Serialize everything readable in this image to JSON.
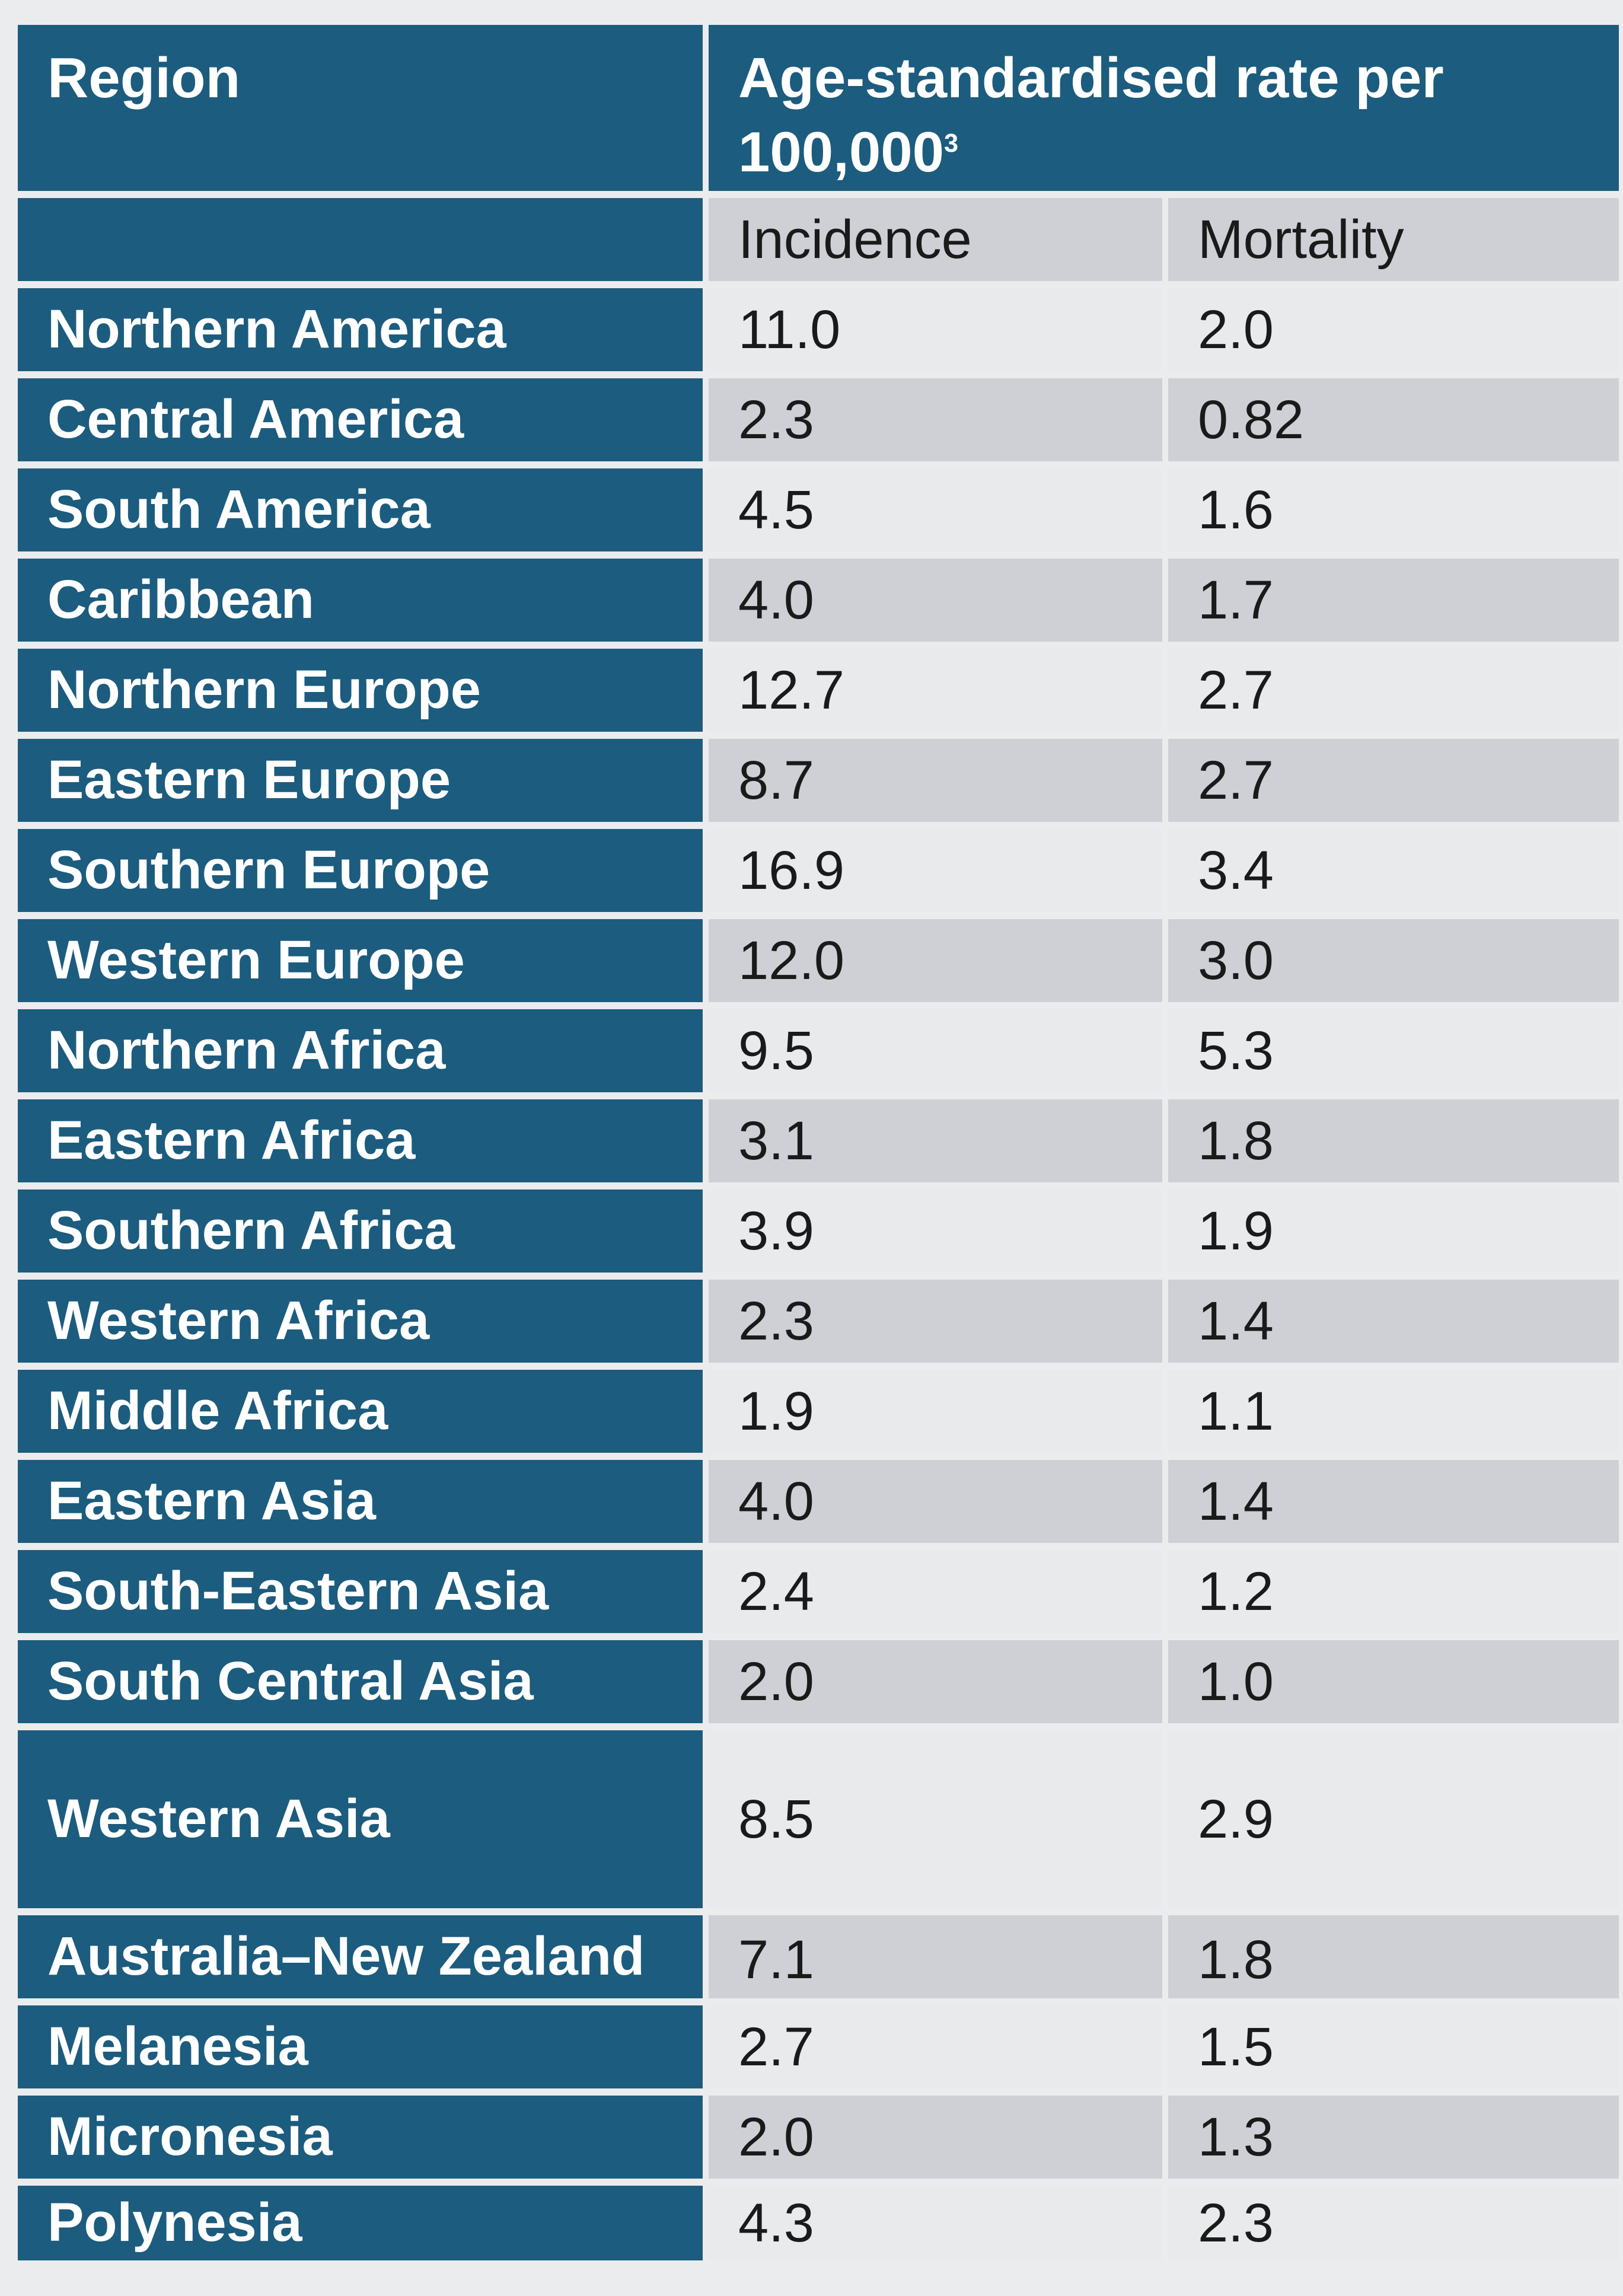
{
  "header": {
    "region": "Region",
    "rate": "Age-standardised rate per 100,000",
    "rate_footnote": "3"
  },
  "subheader": {
    "incidence": "Incidence",
    "mortality": "Mortality"
  },
  "rows": [
    {
      "region": "Northern America",
      "incidence": "11.0",
      "mortality": "2.0"
    },
    {
      "region": "Central America",
      "incidence": "2.3",
      "mortality": "0.82"
    },
    {
      "region": "South America",
      "incidence": "4.5",
      "mortality": "1.6"
    },
    {
      "region": "Caribbean",
      "incidence": "4.0",
      "mortality": "1.7"
    },
    {
      "region": "Northern Europe",
      "incidence": "12.7",
      "mortality": "2.7"
    },
    {
      "region": "Eastern Europe",
      "incidence": "8.7",
      "mortality": "2.7"
    },
    {
      "region": "Southern Europe",
      "incidence": "16.9",
      "mortality": "3.4"
    },
    {
      "region": "Western Europe",
      "incidence": "12.0",
      "mortality": "3.0"
    },
    {
      "region": "Northern Africa",
      "incidence": "9.5",
      "mortality": "5.3"
    },
    {
      "region": "Eastern Africa",
      "incidence": "3.1",
      "mortality": "1.8"
    },
    {
      "region": "Southern Africa",
      "incidence": "3.9",
      "mortality": "1.9"
    },
    {
      "region": "Western Africa",
      "incidence": "2.3",
      "mortality": "1.4"
    },
    {
      "region": "Middle Africa",
      "incidence": "1.9",
      "mortality": "1.1"
    },
    {
      "region": "Eastern Asia",
      "incidence": "4.0",
      "mortality": "1.4"
    },
    {
      "region": "South-Eastern Asia",
      "incidence": "2.4",
      "mortality": "1.2"
    },
    {
      "region": "South Central Asia",
      "incidence": "2.0",
      "mortality": "1.0"
    },
    {
      "region": "Western Asia",
      "incidence": "8.5",
      "mortality": "2.9"
    },
    {
      "region": "Australia–New Zealand",
      "incidence": "7.1",
      "mortality": "1.8"
    },
    {
      "region": "Melanesia",
      "incidence": "2.7",
      "mortality": "1.5"
    },
    {
      "region": "Micronesia",
      "incidence": "2.0",
      "mortality": "1.3"
    },
    {
      "region": "Polynesia",
      "incidence": "4.3",
      "mortality": "2.3"
    }
  ],
  "colors": {
    "header_bg": "#1c5c7e",
    "row_light": "#e9eaec",
    "row_dark": "#ced0d5"
  }
}
